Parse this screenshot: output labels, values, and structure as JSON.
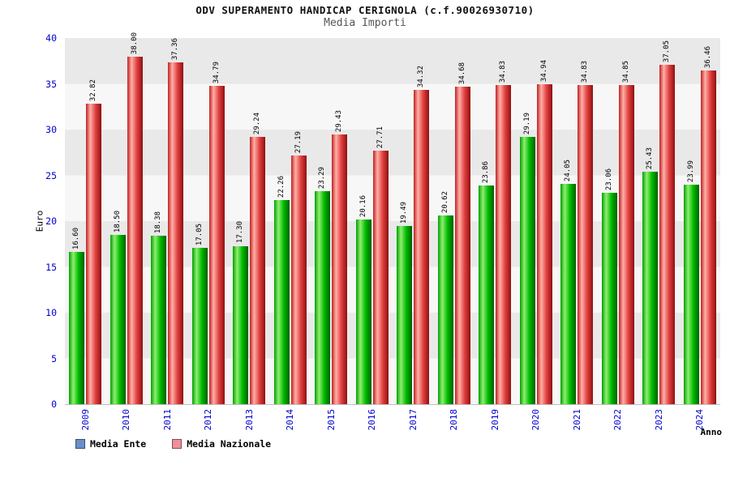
{
  "chart_data": {
    "type": "bar",
    "title": "ODV SUPERAMENTO HANDICAP CERIGNOLA (c.f.90026930710)",
    "subtitle": "Media Importi",
    "xlabel": "Anno",
    "ylabel": "Euro",
    "ylim": [
      0,
      40
    ],
    "ytick_step": 5,
    "grid": "horizontal-bands",
    "legend_position": "bottom-left",
    "axis_label_color": "#0000cc",
    "value_label_color": "#000000",
    "band_colors": [
      "#e9e9e9",
      "#f7f7f7"
    ],
    "categories": [
      "2009",
      "2010",
      "2011",
      "2012",
      "2013",
      "2014",
      "2015",
      "2016",
      "2017",
      "2018",
      "2019",
      "2020",
      "2021",
      "2022",
      "2023",
      "2024"
    ],
    "series": [
      {
        "name": "Media Ente",
        "values": [
          16.6,
          18.5,
          18.38,
          17.05,
          17.3,
          22.26,
          23.29,
          20.16,
          19.49,
          20.62,
          23.86,
          29.19,
          24.05,
          23.06,
          25.43,
          23.99
        ],
        "bar_gradient": [
          "#00a000",
          "#90ee70",
          "#00bb00",
          "#006000"
        ],
        "legend_swatch": "#6a8fc8"
      },
      {
        "name": "Media Nazionale",
        "values": [
          32.82,
          38.0,
          37.36,
          34.79,
          29.24,
          27.19,
          29.43,
          27.71,
          34.32,
          34.68,
          34.83,
          34.94,
          34.83,
          34.85,
          37.05,
          36.46
        ],
        "bar_gradient": [
          "#c02020",
          "#ffb0a8",
          "#e04040",
          "#901010"
        ],
        "legend_swatch": "#ee8f9b"
      }
    ]
  }
}
